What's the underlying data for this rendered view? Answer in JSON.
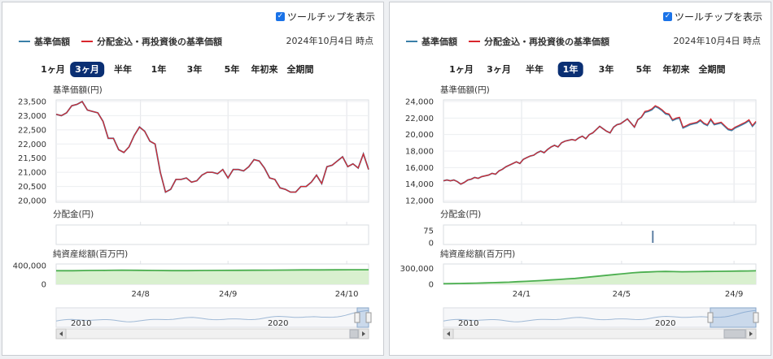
{
  "tooltip_label": "ツールチップを表示",
  "legend": [
    {
      "label": "基準価額",
      "color": "#3a7fa8"
    },
    {
      "label": "分配金込・再投資後の基準価額",
      "color": "#d9262c"
    }
  ],
  "as_of": "2024年10月4日 時点",
  "range_buttons": [
    "1ヶ月",
    "3ヶ月",
    "半年",
    "1年",
    "3年",
    "5年",
    "年初来",
    "全期間"
  ],
  "section_titles": {
    "price": "基準価額(円)",
    "dividend": "分配金(円)",
    "assets": "純資産総額(百万円)"
  },
  "navigator_labels": [
    "2010",
    "2020"
  ],
  "colors": {
    "price_line": "#3a7fa8",
    "reinvest_line": "#d9262c",
    "assets_line": "#4caf50",
    "assets_fill": "#d9f0cf",
    "active_button": "#0a2f73"
  },
  "chart_data": [
    {
      "type": "line",
      "range": "3ヶ月",
      "active_range_index": 1,
      "x_ticks": [
        "24/8",
        "24/9",
        "24/10"
      ],
      "x_tick_positions": [
        0.27,
        0.55,
        0.93
      ],
      "ylim": [
        20000,
        23500
      ],
      "yticks": [
        "23,500",
        "23,000",
        "22,500",
        "22,000",
        "21,500",
        "21,000",
        "20,500",
        "20,000"
      ],
      "ytick_values": [
        23500,
        23000,
        22500,
        22000,
        21500,
        21000,
        20500,
        20000
      ],
      "series": [
        {
          "key": "price",
          "values": [
            23050,
            23000,
            23100,
            23350,
            23400,
            23500,
            23200,
            23150,
            23100,
            22800,
            22200,
            22200,
            21800,
            21700,
            21900,
            22300,
            22600,
            22450,
            22100,
            22000,
            21000,
            20300,
            20400,
            20750,
            20750,
            20800,
            20650,
            20700,
            20900,
            21000,
            21000,
            20950,
            21100,
            20800,
            21100,
            21100,
            21050,
            21200,
            21450,
            21400,
            21150,
            20800,
            20750,
            20450,
            20400,
            20300,
            20300,
            20500,
            20500,
            20650,
            20900,
            20600,
            21200,
            21250,
            21400,
            21550,
            21200,
            21300,
            21150,
            21650,
            21100
          ]
        },
        {
          "key": "reinvest",
          "values": [
            23050,
            23000,
            23100,
            23350,
            23400,
            23500,
            23200,
            23150,
            23100,
            22800,
            22200,
            22200,
            21800,
            21700,
            21900,
            22300,
            22600,
            22450,
            22100,
            22000,
            21000,
            20300,
            20400,
            20750,
            20750,
            20800,
            20650,
            20700,
            20900,
            21000,
            21000,
            20950,
            21100,
            20800,
            21100,
            21100,
            21050,
            21200,
            21450,
            21400,
            21150,
            20800,
            20750,
            20450,
            20400,
            20300,
            20300,
            20500,
            20500,
            20650,
            20900,
            20600,
            21200,
            21250,
            21400,
            21550,
            21200,
            21300,
            21150,
            21650,
            21100
          ]
        }
      ],
      "dividend": {
        "yticks": [],
        "bars": []
      },
      "assets": {
        "ylim": [
          0,
          400000
        ],
        "yticks": [
          "400,000",
          "0"
        ],
        "ytick_values": [
          400000,
          0
        ],
        "values": [
          290000,
          291000,
          295000,
          298000,
          302000,
          300000,
          296000,
          292000,
          293000,
          295000,
          297000,
          299000,
          301000,
          303000,
          305000,
          307000,
          308000,
          310000,
          311000,
          312000
        ]
      }
    },
    {
      "type": "line",
      "range": "1年",
      "active_range_index": 3,
      "x_ticks": [
        "24/1",
        "24/5",
        "24/9"
      ],
      "x_tick_positions": [
        0.25,
        0.57,
        0.93
      ],
      "ylim": [
        12000,
        24000
      ],
      "yticks": [
        "24,000",
        "22,000",
        "20,000",
        "18,000",
        "16,000",
        "14,000",
        "12,000"
      ],
      "ytick_values": [
        24000,
        22000,
        20000,
        18000,
        16000,
        14000,
        12000
      ],
      "series": [
        {
          "key": "price",
          "values": [
            14400,
            14500,
            14400,
            14500,
            14300,
            14000,
            14200,
            14500,
            14600,
            14800,
            14700,
            14900,
            15000,
            15100,
            15300,
            15200,
            15600,
            15800,
            16100,
            16300,
            16500,
            16700,
            16500,
            17000,
            17200,
            17400,
            17500,
            17800,
            18000,
            17800,
            18200,
            18500,
            18700,
            18500,
            19000,
            19200,
            19300,
            19400,
            19300,
            19600,
            19800,
            19500,
            20000,
            20200,
            20600,
            21000,
            20700,
            20400,
            20200,
            20900,
            21200,
            21300,
            21600,
            21900,
            21400,
            20900,
            21800,
            22100,
            22700,
            22800,
            23000,
            23400,
            23200,
            22900,
            22500,
            22400,
            21700,
            21900,
            22000,
            20800,
            21000,
            21200,
            21300,
            21400,
            21700,
            21300,
            21100,
            21800,
            21200,
            21300,
            21400,
            21000,
            20600,
            20500,
            20800,
            21000,
            21200,
            21400,
            21700,
            21000,
            21500
          ]
        },
        {
          "key": "reinvest",
          "values": [
            14400,
            14500,
            14400,
            14500,
            14300,
            14000,
            14200,
            14500,
            14600,
            14800,
            14700,
            14900,
            15000,
            15100,
            15300,
            15200,
            15600,
            15800,
            16100,
            16300,
            16500,
            16700,
            16500,
            17000,
            17200,
            17400,
            17500,
            17800,
            18000,
            17800,
            18200,
            18500,
            18700,
            18500,
            19000,
            19200,
            19300,
            19400,
            19300,
            19600,
            19800,
            19500,
            20000,
            20200,
            20600,
            21000,
            20700,
            20400,
            20200,
            20900,
            21200,
            21300,
            21600,
            21900,
            21400,
            20900,
            21800,
            22100,
            22800,
            22900,
            23100,
            23500,
            23300,
            23000,
            22600,
            22500,
            21800,
            22000,
            22100,
            20900,
            21100,
            21300,
            21400,
            21500,
            21800,
            21400,
            21200,
            21900,
            21300,
            21400,
            21500,
            21100,
            20700,
            20600,
            20900,
            21100,
            21300,
            21500,
            21800,
            21100,
            21600
          ]
        }
      ],
      "dividend": {
        "ylim": [
          0,
          100
        ],
        "yticks": [
          "75",
          "0"
        ],
        "ytick_values": [
          75,
          0
        ],
        "bars": [
          {
            "x": 0.67,
            "value": 75
          }
        ]
      },
      "assets": {
        "ylim": [
          0,
          350000
        ],
        "yticks": [
          "300,000",
          "0"
        ],
        "ytick_values": [
          300000,
          0
        ],
        "values": [
          10000,
          12000,
          15000,
          18000,
          22000,
          26000,
          30000,
          35000,
          40000,
          48000,
          55000,
          62000,
          70000,
          80000,
          90000,
          100000,
          110000,
          125000,
          140000,
          155000,
          170000,
          185000,
          200000,
          215000,
          225000,
          232000,
          238000,
          240000,
          237000,
          235000,
          236000,
          238000,
          240000,
          242000,
          244000,
          245000,
          248000,
          250000,
          252000
        ]
      }
    }
  ]
}
